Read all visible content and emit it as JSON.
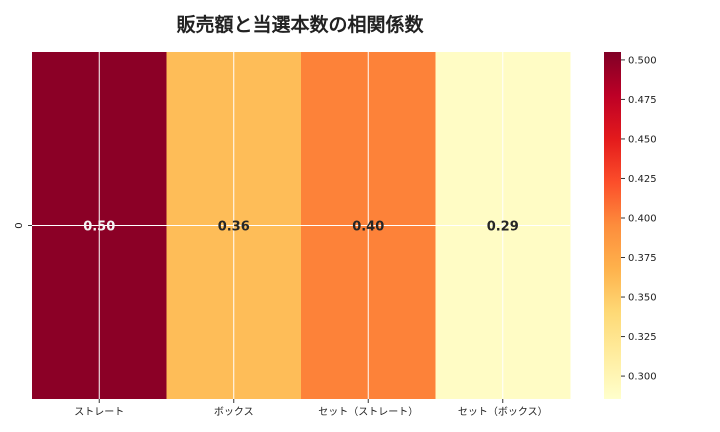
{
  "chart_data": {
    "type": "heatmap",
    "title": "販売額と当選本数の相関係数",
    "rows": [
      "0"
    ],
    "columns": [
      "ストレート",
      "ボックス",
      "セット（ストレート）",
      "セット（ボックス）"
    ],
    "values": [
      [
        0.5,
        0.36,
        0.4,
        0.29
      ]
    ],
    "annotations": [
      "0.50",
      "0.36",
      "0.40",
      "0.29"
    ],
    "colormap": "YlOrRd",
    "colormap_stops": [
      "#ffffcc",
      "#ffeda0",
      "#fed976",
      "#feb24c",
      "#fd8d3c",
      "#fc4e2a",
      "#e31a1c",
      "#bd0026",
      "#800026"
    ],
    "color_range": [
      0.2855,
      0.505
    ],
    "colorbar_ticks": [
      "0.300",
      "0.325",
      "0.350",
      "0.375",
      "0.400",
      "0.425",
      "0.450",
      "0.475",
      "0.500"
    ],
    "grid": true
  }
}
